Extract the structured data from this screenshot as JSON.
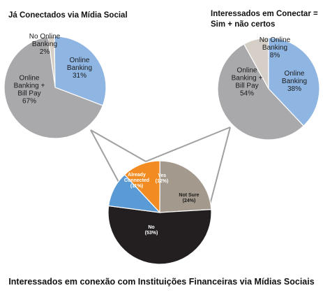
{
  "colors": {
    "online_banking": "#8fb6e3",
    "bill_pay": "#a9a8ab",
    "no_online": "#d6cfc7",
    "already_connected": "#5b9bd5",
    "yes": "#f28c22",
    "not_sure": "#a39a8d",
    "no": "#231f20",
    "connector": "#a0a0a0"
  },
  "caption": "Interessados em conexão com Instituições Financeiras via Mídias Sociais",
  "chart_data": [
    {
      "type": "pie",
      "id": "left",
      "title": "Já Conectados via Mídia Social",
      "start_angle": -8,
      "slices": [
        {
          "lines": [
            "No Online",
            "Banking",
            "2%"
          ],
          "value": 2,
          "color_key": "no_online"
        },
        {
          "lines": [
            "Online",
            "Banking",
            "31%"
          ],
          "value": 31,
          "color_key": "online_banking"
        },
        {
          "lines": [
            "Online",
            "Banking +",
            "Bill Pay",
            "67%"
          ],
          "value": 67,
          "color_key": "bill_pay"
        }
      ]
    },
    {
      "type": "pie",
      "id": "right",
      "title_lines": [
        "Interessados em Conectar =",
        "Sim + não certos"
      ],
      "start_angle": -29,
      "slices": [
        {
          "lines": [
            "No Online",
            "Banking",
            "8%"
          ],
          "value": 8,
          "color_key": "no_online"
        },
        {
          "lines": [
            "Online",
            "Banking",
            "38%"
          ],
          "value": 38,
          "color_key": "online_banking"
        },
        {
          "lines": [
            "Online",
            "Banking +",
            "Bill Pay",
            "54%"
          ],
          "value": 54,
          "color_key": "bill_pay"
        }
      ]
    },
    {
      "type": "pie",
      "id": "bottom",
      "start_angle": -43,
      "slices": [
        {
          "lines": [
            "Yes",
            "(12%)"
          ],
          "value": 12,
          "color_key": "yes"
        },
        {
          "lines": [
            "Not Sure",
            "(24%)"
          ],
          "value": 24,
          "color_key": "not_sure"
        },
        {
          "lines": [
            "No",
            "(53%)"
          ],
          "value": 53,
          "color_key": "no"
        },
        {
          "lines": [
            "Already",
            "Connected",
            "(11%)"
          ],
          "value": 11,
          "color_key": "already_connected"
        }
      ]
    }
  ]
}
